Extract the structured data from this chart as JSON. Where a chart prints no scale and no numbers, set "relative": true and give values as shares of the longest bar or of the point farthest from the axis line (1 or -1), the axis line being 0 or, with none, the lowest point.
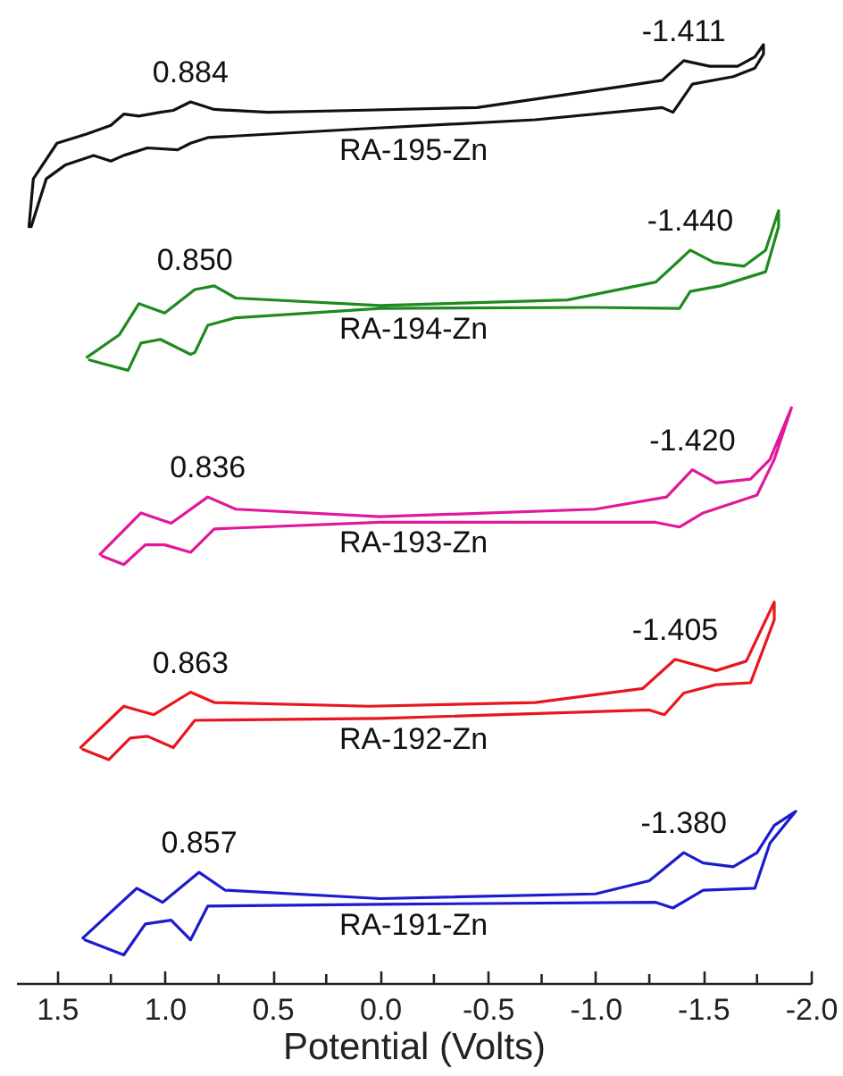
{
  "chart_data": {
    "type": "line",
    "relative": true,
    "xlabel": "Potential (Volts)",
    "xlim": [
      1.69,
      -2.0
    ],
    "tick_labels": "x",
    "xticks": [
      1.5,
      {
        "value": 1.25,
        "label": null
      },
      {
        "value": 1,
        "label": "1.0"
      },
      {
        "value": 0.75,
        "label": null
      },
      0.5,
      {
        "value": 0.25,
        "label": null
      },
      {
        "value": 0,
        "label": "0.0"
      },
      {
        "value": -0.25,
        "label": null
      },
      -0.5,
      {
        "value": -0.75,
        "label": null
      },
      {
        "value": -1,
        "label": "-1.0"
      },
      {
        "value": -1.25,
        "label": null
      },
      -1.5,
      {
        "value": -1.75,
        "label": null
      },
      {
        "value": -2,
        "label": "-2.0"
      }
    ],
    "series": [
      {
        "name": "RA-195-Zn",
        "color": "#111111",
        "x": [
          1.63,
          1.61,
          1.5,
          1.36,
          1.25,
          1.19,
          1.12,
          1.02,
          0.96,
          0.88,
          0.77,
          0.52,
          0.11,
          -0.45,
          -0.87,
          -1.14,
          -1.31,
          -1.41,
          -1.53,
          -1.66,
          -1.74,
          -1.78,
          -1.78,
          -1.74,
          -1.64,
          -1.45,
          -1.36,
          -1.31,
          -0.72,
          0.11,
          0.8,
          0.88,
          0.94,
          1.08,
          1.19,
          1.25,
          1.33,
          1.46,
          1.55,
          1.62
        ],
        "values": [
          0.806,
          0.857,
          0.895,
          0.905,
          0.914,
          0.926,
          0.924,
          0.928,
          0.93,
          0.939,
          0.931,
          0.928,
          0.93,
          0.933,
          0.947,
          0.956,
          0.962,
          0.983,
          0.977,
          0.977,
          0.987,
          1.0,
          0.99,
          0.975,
          0.966,
          0.958,
          0.928,
          0.933,
          0.92,
          0.91,
          0.901,
          0.895,
          0.888,
          0.89,
          0.882,
          0.876,
          0.882,
          0.872,
          0.857,
          0.806
        ]
      },
      {
        "name": "RA-194-Zn",
        "color": "#1f8a1f",
        "x": [
          1.36,
          1.21,
          1.12,
          1.0,
          0.86,
          0.77,
          0.67,
          0.0,
          -0.87,
          -1.28,
          -1.44,
          -1.55,
          -1.69,
          -1.79,
          -1.85,
          -1.85,
          -1.79,
          -1.58,
          -1.44,
          -1.39,
          -1.0,
          0.0,
          0.67,
          0.8,
          0.86,
          0.88,
          1.02,
          1.11,
          1.17,
          1.27,
          1.35
        ],
        "values": [
          0.667,
          0.691,
          0.724,
          0.714,
          0.739,
          0.743,
          0.73,
          0.722,
          0.728,
          0.747,
          0.781,
          0.768,
          0.764,
          0.781,
          0.823,
          0.806,
          0.758,
          0.743,
          0.737,
          0.719,
          0.72,
          0.719,
          0.709,
          0.701,
          0.672,
          0.67,
          0.686,
          0.682,
          0.653,
          0.659,
          0.664
        ]
      },
      {
        "name": "RA-193-Zn",
        "color": "#e0189a",
        "x": [
          1.3,
          1.11,
          0.97,
          0.8,
          0.67,
          0.0,
          -1.0,
          -1.33,
          -1.45,
          -1.56,
          -1.72,
          -1.81,
          -1.91,
          -1.83,
          -1.75,
          -1.5,
          -1.39,
          -1.28,
          0.0,
          0.77,
          0.88,
          1.0,
          1.09,
          1.19,
          1.29
        ],
        "values": [
          0.457,
          0.501,
          0.49,
          0.518,
          0.505,
          0.497,
          0.505,
          0.518,
          0.547,
          0.533,
          0.537,
          0.558,
          0.613,
          0.558,
          0.52,
          0.501,
          0.486,
          0.491,
          0.491,
          0.484,
          0.459,
          0.467,
          0.467,
          0.446,
          0.455
        ]
      },
      {
        "name": "RA-192-Zn",
        "color": "#e8161e",
        "x": [
          1.39,
          1.19,
          1.05,
          0.88,
          0.77,
          0.05,
          -0.72,
          -1.22,
          -1.37,
          -1.56,
          -1.7,
          -1.83,
          -1.83,
          -1.72,
          -1.56,
          -1.41,
          -1.32,
          -1.25,
          0.0,
          0.86,
          0.96,
          1.08,
          1.16,
          1.26,
          1.38
        ],
        "values": [
          0.251,
          0.295,
          0.286,
          0.31,
          0.299,
          0.295,
          0.299,
          0.314,
          0.345,
          0.333,
          0.343,
          0.406,
          0.387,
          0.32,
          0.318,
          0.309,
          0.286,
          0.291,
          0.282,
          0.28,
          0.251,
          0.263,
          0.261,
          0.238,
          0.249
        ]
      },
      {
        "name": "RA-191-Zn",
        "color": "#1c1ccc",
        "x": [
          1.38,
          1.13,
          1.01,
          0.84,
          0.72,
          0.0,
          -1.0,
          -1.25,
          -1.41,
          -1.5,
          -1.64,
          -1.75,
          -1.83,
          -1.93,
          -1.81,
          -1.74,
          -1.5,
          -1.36,
          -1.28,
          0.0,
          0.8,
          0.88,
          0.97,
          1.09,
          1.19,
          1.37
        ],
        "values": [
          0.048,
          0.101,
          0.086,
          0.118,
          0.099,
          0.09,
          0.095,
          0.109,
          0.139,
          0.128,
          0.124,
          0.139,
          0.168,
          0.183,
          0.149,
          0.101,
          0.099,
          0.08,
          0.086,
          0.084,
          0.082,
          0.046,
          0.067,
          0.063,
          0.03,
          0.046
        ]
      }
    ],
    "annotations": [
      {
        "text": "0.884",
        "x": 0.88,
        "y": 0.939
      },
      {
        "text": "-1.411",
        "x": -1.41,
        "y": 0.983
      },
      {
        "text": "0.850",
        "x": 0.86,
        "y": 0.739
      },
      {
        "text": "-1.440",
        "x": -1.44,
        "y": 0.781
      },
      {
        "text": "0.836",
        "x": 0.8,
        "y": 0.518
      },
      {
        "text": "-1.420",
        "x": -1.45,
        "y": 0.547
      },
      {
        "text": "0.863",
        "x": 0.88,
        "y": 0.31
      },
      {
        "text": "-1.405",
        "x": -1.37,
        "y": 0.345
      },
      {
        "text": "0.857",
        "x": 0.84,
        "y": 0.118
      },
      {
        "text": "-1.380",
        "x": -1.41,
        "y": 0.139
      }
    ]
  }
}
